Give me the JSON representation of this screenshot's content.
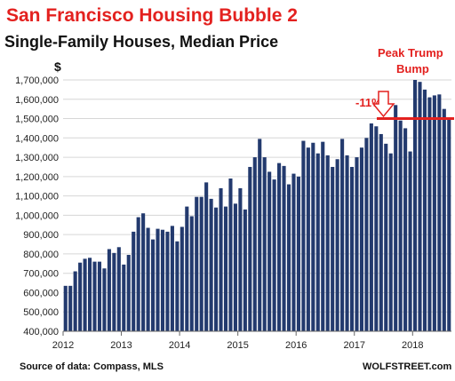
{
  "chart_data": {
    "type": "bar",
    "title": "San Francisco Housing Bubble 2",
    "subtitle": "Single-Family Houses, Median Price",
    "y_unit_label": "$",
    "ylim": [
      400000,
      1700000
    ],
    "y_ticks": [
      "1,700,000",
      "1,600,000",
      "1,500,000",
      "1,400,000",
      "1,300,000",
      "1,200,000",
      "1,100,000",
      "1,000,000",
      "900,000",
      "800,000",
      "700,000",
      "600,000",
      "500,000",
      "400,000"
    ],
    "x_ticks": [
      "2012",
      "2013",
      "2014",
      "2015",
      "2016",
      "2017",
      "2018"
    ],
    "start_year": 2012,
    "grid": true,
    "bar_color": "#233a6e",
    "accent_color": "#e3211f",
    "values": [
      635000,
      635000,
      710000,
      755000,
      775000,
      780000,
      760000,
      760000,
      725000,
      825000,
      805000,
      835000,
      745000,
      795000,
      915000,
      990000,
      1010000,
      935000,
      875000,
      930000,
      925000,
      915000,
      945000,
      865000,
      940000,
      1045000,
      995000,
      1095000,
      1095000,
      1170000,
      1085000,
      1040000,
      1140000,
      1045000,
      1190000,
      1060000,
      1140000,
      1030000,
      1250000,
      1300000,
      1395000,
      1300000,
      1225000,
      1185000,
      1270000,
      1255000,
      1160000,
      1215000,
      1200000,
      1385000,
      1350000,
      1375000,
      1320000,
      1380000,
      1310000,
      1250000,
      1290000,
      1395000,
      1310000,
      1250000,
      1300000,
      1350000,
      1400000,
      1475000,
      1460000,
      1420000,
      1370000,
      1320000,
      1570000,
      1490000,
      1450000,
      1330000,
      1700000,
      1690000,
      1650000,
      1610000,
      1620000,
      1625000,
      1550000,
      1505000
    ],
    "reference_line": 1500000,
    "annotations": {
      "drop_label": "-11%",
      "peak_label_line1": "Peak Trump",
      "peak_label_line2": "Bump"
    }
  },
  "footer": {
    "source": "Source of data: Compass, MLS",
    "brand": "WOLFSTREET.com"
  }
}
